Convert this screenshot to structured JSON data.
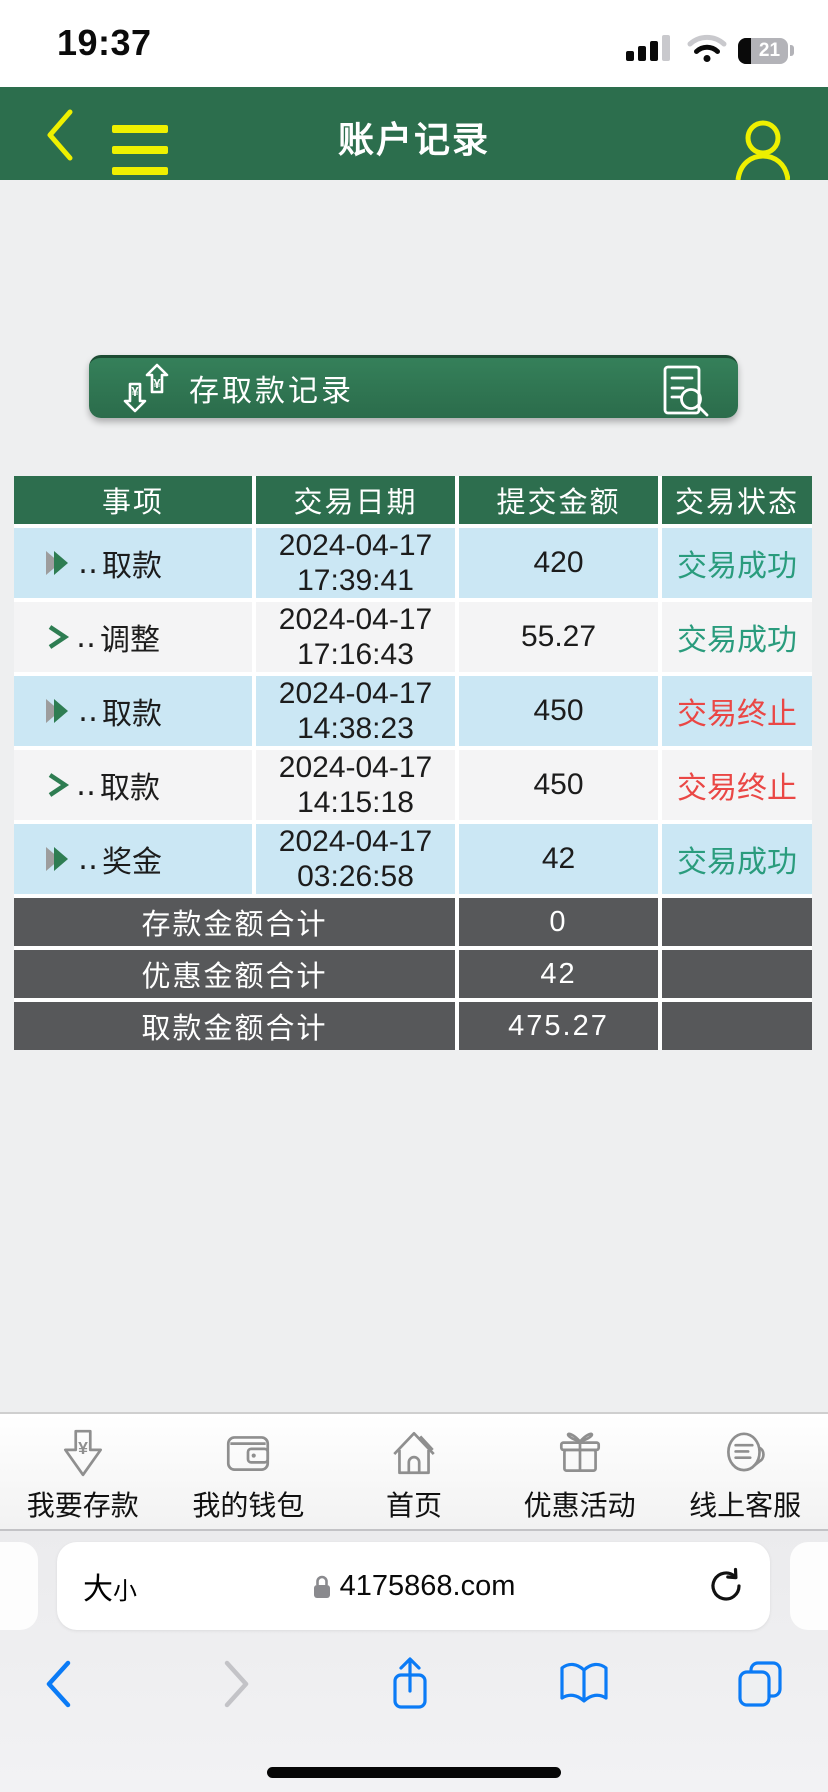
{
  "status_bar": {
    "time": "19:37",
    "battery_percent": "21"
  },
  "app_header": {
    "title": "账户记录"
  },
  "banner": {
    "title": "存取款记录",
    "left_icon": "deposit-withdraw-exchange-icon",
    "right_icon": "document-search-icon"
  },
  "table": {
    "headers": [
      "事项",
      "交易日期",
      "提交金额",
      "交易状态"
    ],
    "item_prefix": "‥",
    "rows": [
      {
        "icon": "double-arrow-icon",
        "item": "取款",
        "date": "2024-04-17",
        "time": "17:39:41",
        "amount": "420",
        "status": "交易成功",
        "status_type": "success"
      },
      {
        "icon": "chevron-icon",
        "item": "调整",
        "date": "2024-04-17",
        "time": "17:16:43",
        "amount": "55.27",
        "status": "交易成功",
        "status_type": "success"
      },
      {
        "icon": "double-arrow-icon",
        "item": "取款",
        "date": "2024-04-17",
        "time": "14:38:23",
        "amount": "450",
        "status": "交易终止",
        "status_type": "terminated"
      },
      {
        "icon": "chevron-icon",
        "item": "取款",
        "date": "2024-04-17",
        "time": "14:15:18",
        "amount": "450",
        "status": "交易终止",
        "status_type": "terminated"
      },
      {
        "icon": "double-arrow-icon",
        "item": "奖金",
        "date": "2024-04-17",
        "time": "03:26:58",
        "amount": "42",
        "status": "交易成功",
        "status_type": "success"
      }
    ],
    "summary": [
      {
        "label": "存款金额合计",
        "amount": "0"
      },
      {
        "label": "优惠金额合计",
        "amount": "42"
      },
      {
        "label": "取款金额合计",
        "amount": "475.27"
      }
    ]
  },
  "bottom_nav": {
    "items": [
      {
        "icon": "deposit-arrow-icon",
        "label": "我要存款"
      },
      {
        "icon": "wallet-icon",
        "label": "我的钱包"
      },
      {
        "icon": "home-icon",
        "label": "首页"
      },
      {
        "icon": "gift-icon",
        "label": "优惠活动"
      },
      {
        "icon": "customer-service-icon",
        "label": "线上客服"
      }
    ]
  },
  "browser": {
    "text_size_label_large": "大",
    "text_size_label_small": "小",
    "url": "4175868.com"
  },
  "colors": {
    "header_green": "#2c6e4d",
    "table_header_green": "#2d6e4e",
    "banner_green": "#2f7751",
    "accent_yellow": "#eef000",
    "row_blue": "#cbe7f4",
    "row_white": "#f4f4f5",
    "summary_gray": "#57585a",
    "success_green": "#2a9c7d",
    "danger_red": "#ea4745",
    "ios_blue": "#0b7bf6"
  }
}
